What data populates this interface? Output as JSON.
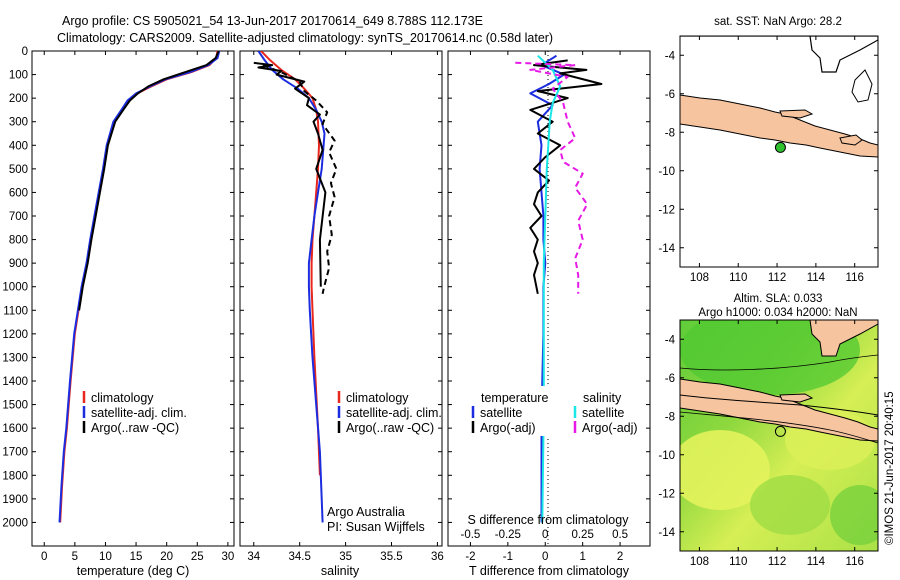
{
  "header": {
    "title_line1": "Argo profile: CS 5905021_54 13-Jun-2017 20170614_649 8.788S 112.173E",
    "title_line2": "Climatology: CARS2009. Satellite-adjusted climatology: synTS_20170614.nc (0.58d later)"
  },
  "credit": "©IMOS 21-Jun-2017 20:40:15",
  "colors": {
    "climatology": "#e8281e",
    "satellite": "#1c2de0",
    "argo": "#000000",
    "satellite_diff_s": "#19e6e6",
    "argo_diff_s": "#e619e6",
    "land": "#f7c4a0",
    "ssa_bright": "#e2f25a",
    "ssa_green": "#39c42a",
    "float_marker": "#2fbf2f"
  },
  "chart_data": [
    {
      "type": "line",
      "name": "temperature-profile",
      "xlabel": "temperature (deg C)",
      "ylabel": "",
      "xlim": [
        -2,
        31
      ],
      "ylim": [
        2100,
        0
      ],
      "xticks": [
        0,
        5,
        10,
        15,
        20,
        25,
        30
      ],
      "yticks": [
        0,
        100,
        200,
        300,
        400,
        500,
        600,
        700,
        800,
        900,
        1000,
        1100,
        1200,
        1300,
        1400,
        1500,
        1600,
        1700,
        1800,
        1900,
        2000
      ],
      "legend": [
        "climatology",
        "satellite-adj. clim.",
        "Argo(..raw -QC)"
      ],
      "series": [
        {
          "name": "climatology",
          "color": "#e8281e",
          "x": [
            28.3,
            28.1,
            27,
            24,
            20,
            17.5,
            15.2,
            13.8,
            12.8,
            11.5,
            10.3,
            9.7,
            9,
            8.3,
            7.6,
            7,
            6.2,
            5.6,
            5,
            4.3,
            3.7,
            3.3,
            2.9,
            2.6
          ],
          "y": [
            0,
            30,
            60,
            90,
            120,
            150,
            180,
            210,
            250,
            300,
            400,
            500,
            600,
            700,
            800,
            900,
            1000,
            1100,
            1200,
            1400,
            1600,
            1700,
            1850,
            2000
          ]
        },
        {
          "name": "satellite-adj. clim.",
          "color": "#1c2de0",
          "x": [
            28.6,
            28.3,
            26.8,
            23.8,
            19.8,
            17.3,
            15,
            13.6,
            12.6,
            11.3,
            10.2,
            9.6,
            8.9,
            8.2,
            7.5,
            6.9,
            6.1,
            5.5,
            4.9,
            4.2,
            3.6,
            3.2,
            2.8,
            2.5
          ],
          "y": [
            0,
            30,
            60,
            90,
            120,
            150,
            180,
            210,
            250,
            300,
            400,
            500,
            600,
            700,
            800,
            900,
            1000,
            1100,
            1200,
            1400,
            1600,
            1700,
            1850,
            2000
          ]
        },
        {
          "name": "Argo(..raw -QC)",
          "color": "#000000",
          "x": [
            28.5,
            28,
            26.5,
            23,
            19.5,
            17,
            15.3,
            14,
            12.9,
            11.6,
            10.4,
            9.8,
            9.1,
            8.4,
            7.7,
            7.1,
            6.3,
            5.7
          ],
          "y": [
            0,
            30,
            60,
            90,
            120,
            150,
            180,
            210,
            250,
            300,
            400,
            500,
            600,
            700,
            800,
            900,
            1000,
            1100
          ]
        }
      ]
    },
    {
      "type": "line",
      "name": "salinity-profile",
      "xlabel": "salinity",
      "ylabel": "",
      "xlim": [
        33.85,
        36.05
      ],
      "ylim": [
        2100,
        0
      ],
      "xticks": [
        34,
        34.5,
        35,
        35.5,
        36
      ],
      "legend": [
        "climatology",
        "satellite-adj. clim.",
        "Argo(..raw -QC)"
      ],
      "annotation": [
        "Argo Australia",
        "PI: Susan Wijffels"
      ],
      "series": [
        {
          "name": "climatology",
          "color": "#e8281e",
          "x": [
            34.08,
            34.18,
            34.3,
            34.45,
            34.55,
            34.64,
            34.68,
            34.7,
            34.71,
            34.7,
            34.68,
            34.66,
            34.64,
            34.63,
            34.63,
            34.64,
            34.66,
            34.7,
            34.72
          ],
          "y": [
            0,
            40,
            80,
            120,
            160,
            200,
            250,
            300,
            400,
            500,
            600,
            700,
            800,
            900,
            1000,
            1100,
            1300,
            1600,
            1800
          ]
        },
        {
          "name": "satellite-adj. clim.",
          "color": "#1c2de0",
          "x": [
            34.05,
            34.12,
            34.2,
            34.32,
            34.48,
            34.6,
            34.68,
            34.74,
            34.77,
            34.76,
            34.74,
            34.7,
            34.66,
            34.63,
            34.6,
            34.6,
            34.61,
            34.64,
            34.68,
            34.72,
            34.74,
            34.75
          ],
          "y": [
            0,
            40,
            80,
            120,
            160,
            200,
            250,
            300,
            350,
            400,
            500,
            600,
            700,
            800,
            900,
            1000,
            1100,
            1300,
            1500,
            1700,
            1900,
            2000
          ]
        },
        {
          "name": "Argo(..raw -QC)",
          "color": "#000000",
          "x": [
            34,
            34.2,
            34.05,
            34.3,
            34.25,
            34.55,
            34.45,
            34.6,
            34.58,
            34.72,
            34.65,
            34.7,
            34.75,
            34.68,
            34.78,
            34.72,
            34.73
          ],
          "y": [
            50,
            60,
            70,
            85,
            100,
            130,
            160,
            200,
            230,
            270,
            300,
            350,
            420,
            500,
            600,
            800,
            1000
          ]
        },
        {
          "name": "Argo(..raw -QC) dashed",
          "color": "#000000",
          "dashed": true,
          "x": [
            34.1,
            34.3,
            34.5,
            34.55,
            34.68,
            34.8,
            34.75,
            34.88,
            34.82,
            34.9,
            34.84,
            34.88,
            34.82,
            34.85,
            34.8,
            34.82,
            34.78,
            34.76,
            34.75
          ],
          "y": [
            60,
            90,
            130,
            170,
            210,
            260,
            310,
            380,
            430,
            500,
            560,
            620,
            700,
            780,
            850,
            920,
            980,
            1010,
            1030
          ]
        }
      ]
    },
    {
      "type": "line",
      "name": "difference-profile",
      "xlabel": "T difference from climatology",
      "x2label": "S difference from climatology",
      "xlim": [
        -2.6,
        2.8
      ],
      "x2lim": [
        -0.65,
        0.7
      ],
      "ylim": [
        2100,
        0
      ],
      "xticks": [
        -2,
        -1,
        0,
        1,
        2
      ],
      "x2ticks": [
        -0.5,
        -0.25,
        0,
        0.25,
        0.5
      ],
      "legend_left": {
        "title": "temperature",
        "items": [
          "satellite",
          "Argo(-adj)"
        ]
      },
      "legend_right": {
        "title": "salinity",
        "items": [
          "satellite",
          "Argo(-adj)"
        ]
      },
      "series": [
        {
          "name": "temperature satellite",
          "color": "#1c2de0",
          "x": [
            0.3,
            -0.1,
            0.5,
            0.1,
            -0.4,
            0.2,
            -0.2,
            -0.1,
            -0.15,
            -0.1,
            -0.05,
            -0.05,
            0,
            -0.05,
            -0.05,
            -0.08,
            -0.1,
            -0.1,
            -0.1
          ],
          "y": [
            20,
            60,
            100,
            140,
            180,
            230,
            300,
            400,
            500,
            600,
            700,
            800,
            900,
            1000,
            1200,
            1400,
            1600,
            1800,
            2000
          ]
        },
        {
          "name": "temperature Argo(-adj)",
          "color": "#000000",
          "x": [
            0.6,
            -0.3,
            1.1,
            0.4,
            1.5,
            -0.2,
            0.6,
            -0.4,
            0.2,
            -0.2,
            0.4,
            0,
            -0.3,
            0.1,
            -0.2,
            -0.3,
            -0.1,
            -0.4,
            -0.2,
            -0.3,
            -0.2,
            -0.3,
            -0.2
          ],
          "y": [
            40,
            60,
            80,
            95,
            140,
            170,
            200,
            250,
            300,
            350,
            400,
            450,
            500,
            550,
            600,
            650,
            700,
            750,
            800,
            850,
            900,
            950,
            1030
          ]
        },
        {
          "name": "salinity satellite",
          "color": "#19e6e6",
          "x": [
            -0.05,
            0.05,
            0.1,
            0.05,
            0.03,
            0.02,
            0.01,
            0,
            -0.01,
            -0.01,
            -0.01,
            -0.02
          ],
          "y": [
            20,
            80,
            150,
            220,
            300,
            400,
            500,
            700,
            900,
            1200,
            1500,
            2000
          ]
        },
        {
          "name": "salinity Argo(-adj)",
          "color": "#e619e6",
          "dashed": true,
          "x": [
            -0.2,
            0.2,
            -0.1,
            0.15,
            0.05,
            0.12,
            0.15,
            0.2,
            0.1,
            0.12,
            0.25,
            0.2,
            0.28,
            0.22,
            0.25,
            0.2,
            0.22,
            0.22
          ],
          "y": [
            50,
            60,
            80,
            110,
            160,
            220,
            300,
            370,
            420,
            470,
            520,
            580,
            650,
            720,
            800,
            880,
            950,
            1030
          ]
        }
      ]
    },
    {
      "type": "heatmap",
      "name": "sst-map",
      "title": "sat. SST: NaN Argo: 28.2",
      "xlim": [
        107,
        117.2
      ],
      "ylim": [
        -15,
        -3
      ],
      "xticks": [
        108,
        110,
        112,
        114,
        116
      ],
      "yticks": [
        -4,
        -6,
        -8,
        -10,
        -12,
        -14
      ],
      "float_position": {
        "lon": 112.173,
        "lat": -8.788
      }
    },
    {
      "type": "heatmap",
      "name": "sla-map",
      "title_line1": "Altim. SLA: 0.033",
      "title_line2": "Argo h1000: 0.034  h2000: NaN",
      "xlim": [
        107,
        117.2
      ],
      "ylim": [
        -15,
        -3
      ],
      "xticks": [
        108,
        110,
        112,
        114,
        116
      ],
      "yticks": [
        -4,
        -6,
        -8,
        -10,
        -12,
        -14
      ],
      "float_position": {
        "lon": 112.173,
        "lat": -8.788
      }
    }
  ]
}
